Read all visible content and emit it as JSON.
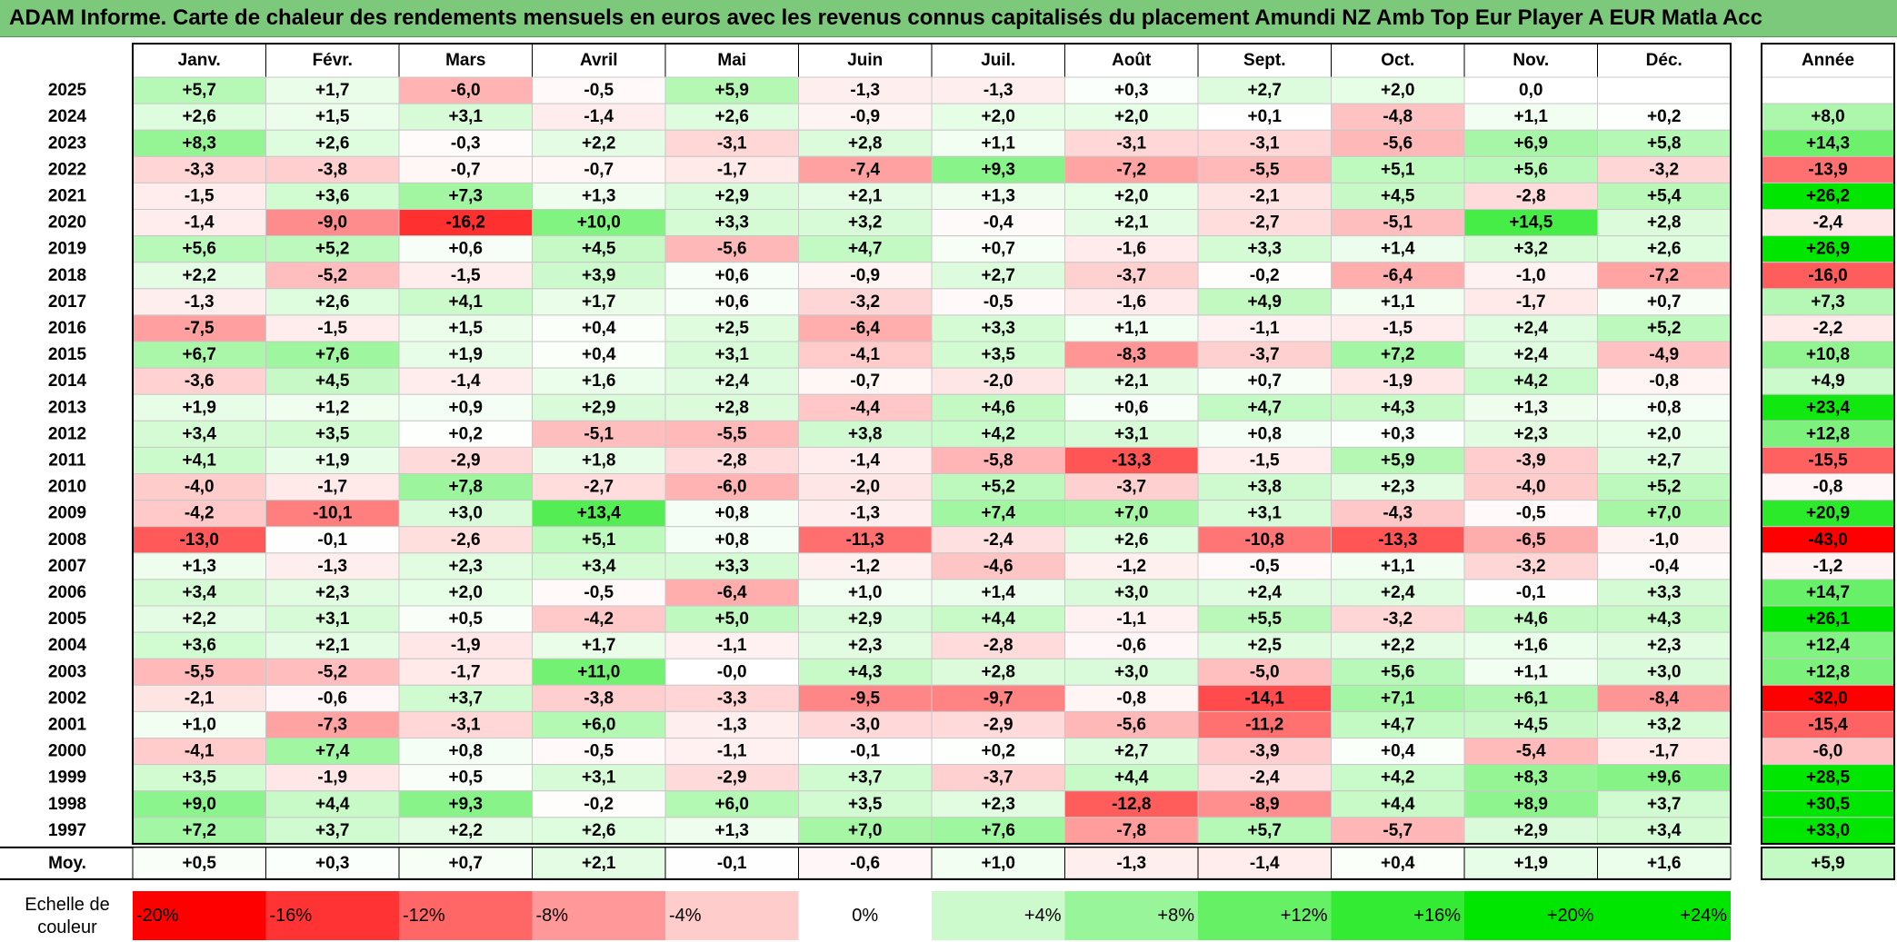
{
  "title": "ADAM Informe. Carte de chaleur des rendements mensuels en euros avec les revenus connus capitalisés du placement Amundi NZ Amb Top Eur Player A EUR Matla Acc",
  "chart_data": {
    "type": "heatmap",
    "title": "ADAM Informe. Carte de chaleur des rendements mensuels en euros avec les revenus connus capitalisés du placement Amundi NZ Amb Top Eur Player A EUR Matla Acc",
    "months": [
      "Janv.",
      "Févr.",
      "Mars",
      "Avril",
      "Mai",
      "Juin",
      "Juil.",
      "Août",
      "Sept.",
      "Oct.",
      "Nov.",
      "Déc."
    ],
    "year_header": "Année",
    "rows": [
      {
        "year": "2025",
        "values": [
          "+5,7",
          "+1,7",
          "-6,0",
          "-0,5",
          "+5,9",
          "-1,3",
          "-1,3",
          "+0,3",
          "+2,7",
          "+2,0",
          "0,0",
          ""
        ],
        "annual": ""
      },
      {
        "year": "2024",
        "values": [
          "+2,6",
          "+1,5",
          "+3,1",
          "-1,4",
          "+2,6",
          "-0,9",
          "+2,0",
          "+2,0",
          "+0,1",
          "-4,8",
          "+1,1",
          "+0,2"
        ],
        "annual": "+8,0"
      },
      {
        "year": "2023",
        "values": [
          "+8,3",
          "+2,6",
          "-0,3",
          "+2,2",
          "-3,1",
          "+2,8",
          "+1,1",
          "-3,1",
          "-3,1",
          "-5,6",
          "+6,9",
          "+5,8"
        ],
        "annual": "+14,3"
      },
      {
        "year": "2022",
        "values": [
          "-3,3",
          "-3,8",
          "-0,7",
          "-0,7",
          "-1,7",
          "-7,4",
          "+9,3",
          "-7,2",
          "-5,5",
          "+5,1",
          "+5,6",
          "-3,2"
        ],
        "annual": "-13,9"
      },
      {
        "year": "2021",
        "values": [
          "-1,5",
          "+3,6",
          "+7,3",
          "+1,3",
          "+2,9",
          "+2,1",
          "+1,3",
          "+2,0",
          "-2,1",
          "+4,5",
          "-2,8",
          "+5,4"
        ],
        "annual": "+26,2"
      },
      {
        "year": "2020",
        "values": [
          "-1,4",
          "-9,0",
          "-16,2",
          "+10,0",
          "+3,3",
          "+3,2",
          "-0,4",
          "+2,1",
          "-2,7",
          "-5,1",
          "+14,5",
          "+2,8"
        ],
        "annual": "-2,4"
      },
      {
        "year": "2019",
        "values": [
          "+5,6",
          "+5,2",
          "+0,6",
          "+4,5",
          "-5,6",
          "+4,7",
          "+0,7",
          "-1,6",
          "+3,3",
          "+1,4",
          "+3,2",
          "+2,6"
        ],
        "annual": "+26,9"
      },
      {
        "year": "2018",
        "values": [
          "+2,2",
          "-5,2",
          "-1,5",
          "+3,9",
          "+0,6",
          "-0,9",
          "+2,7",
          "-3,7",
          "-0,2",
          "-6,4",
          "-1,0",
          "-7,2"
        ],
        "annual": "-16,0"
      },
      {
        "year": "2017",
        "values": [
          "-1,3",
          "+2,6",
          "+4,1",
          "+1,7",
          "+0,6",
          "-3,2",
          "-0,5",
          "-1,6",
          "+4,9",
          "+1,1",
          "-1,7",
          "+0,7"
        ],
        "annual": "+7,3"
      },
      {
        "year": "2016",
        "values": [
          "-7,5",
          "-1,5",
          "+1,5",
          "+0,4",
          "+2,5",
          "-6,4",
          "+3,3",
          "+1,1",
          "-1,1",
          "-1,5",
          "+2,4",
          "+5,2"
        ],
        "annual": "-2,2"
      },
      {
        "year": "2015",
        "values": [
          "+6,7",
          "+7,6",
          "+1,9",
          "+0,4",
          "+3,1",
          "-4,1",
          "+3,5",
          "-8,3",
          "-3,7",
          "+7,2",
          "+2,4",
          "-4,9"
        ],
        "annual": "+10,8"
      },
      {
        "year": "2014",
        "values": [
          "-3,6",
          "+4,5",
          "-1,4",
          "+1,6",
          "+2,4",
          "-0,7",
          "-2,0",
          "+2,1",
          "+0,7",
          "-1,9",
          "+4,2",
          "-0,8"
        ],
        "annual": "+4,9"
      },
      {
        "year": "2013",
        "values": [
          "+1,9",
          "+1,2",
          "+0,9",
          "+2,9",
          "+2,8",
          "-4,4",
          "+4,6",
          "+0,6",
          "+4,7",
          "+4,3",
          "+1,3",
          "+0,8"
        ],
        "annual": "+23,4"
      },
      {
        "year": "2012",
        "values": [
          "+3,4",
          "+3,5",
          "+0,2",
          "-5,1",
          "-5,5",
          "+3,8",
          "+4,2",
          "+3,1",
          "+0,8",
          "+0,3",
          "+2,3",
          "+2,0"
        ],
        "annual": "+12,8"
      },
      {
        "year": "2011",
        "values": [
          "+4,1",
          "+1,9",
          "-2,9",
          "+1,8",
          "-2,8",
          "-1,4",
          "-5,8",
          "-13,3",
          "-1,5",
          "+5,9",
          "-3,9",
          "+2,7"
        ],
        "annual": "-15,5"
      },
      {
        "year": "2010",
        "values": [
          "-4,0",
          "-1,7",
          "+7,8",
          "-2,7",
          "-6,0",
          "-2,0",
          "+5,2",
          "-3,7",
          "+3,8",
          "+2,3",
          "-4,0",
          "+5,2"
        ],
        "annual": "-0,8"
      },
      {
        "year": "2009",
        "values": [
          "-4,2",
          "-10,1",
          "+3,0",
          "+13,4",
          "+0,8",
          "-1,3",
          "+7,4",
          "+7,0",
          "+3,1",
          "-4,3",
          "-0,5",
          "+7,0"
        ],
        "annual": "+20,9"
      },
      {
        "year": "2008",
        "values": [
          "-13,0",
          "-0,1",
          "-2,6",
          "+5,1",
          "+0,8",
          "-11,3",
          "-2,4",
          "+2,6",
          "-10,8",
          "-13,3",
          "-6,5",
          "-1,0"
        ],
        "annual": "-43,0"
      },
      {
        "year": "2007",
        "values": [
          "+1,3",
          "-1,3",
          "+2,3",
          "+3,4",
          "+3,3",
          "-1,2",
          "-4,6",
          "-1,2",
          "-0,5",
          "+1,1",
          "-3,2",
          "-0,4"
        ],
        "annual": "-1,2"
      },
      {
        "year": "2006",
        "values": [
          "+3,4",
          "+2,3",
          "+2,0",
          "-0,5",
          "-6,4",
          "+1,0",
          "+1,4",
          "+3,0",
          "+2,4",
          "+2,4",
          "-0,1",
          "+3,3"
        ],
        "annual": "+14,7"
      },
      {
        "year": "2005",
        "values": [
          "+2,2",
          "+3,1",
          "+0,5",
          "-4,2",
          "+5,0",
          "+2,9",
          "+4,4",
          "-1,1",
          "+5,5",
          "-3,2",
          "+4,6",
          "+4,3"
        ],
        "annual": "+26,1"
      },
      {
        "year": "2004",
        "values": [
          "+3,6",
          "+2,1",
          "-1,9",
          "+1,7",
          "-1,1",
          "+2,3",
          "-2,8",
          "-0,6",
          "+2,5",
          "+2,2",
          "+1,6",
          "+2,3"
        ],
        "annual": "+12,4"
      },
      {
        "year": "2003",
        "values": [
          "-5,5",
          "-5,2",
          "-1,7",
          "+11,0",
          "-0,0",
          "+4,3",
          "+2,8",
          "+3,0",
          "-5,0",
          "+5,6",
          "+1,1",
          "+3,0"
        ],
        "annual": "+12,8"
      },
      {
        "year": "2002",
        "values": [
          "-2,1",
          "-0,6",
          "+3,7",
          "-3,8",
          "-3,3",
          "-9,5",
          "-9,7",
          "-0,8",
          "-14,1",
          "+7,1",
          "+6,1",
          "-8,4"
        ],
        "annual": "-32,0"
      },
      {
        "year": "2001",
        "values": [
          "+1,0",
          "-7,3",
          "-3,1",
          "+6,0",
          "-1,3",
          "-3,0",
          "-2,9",
          "-5,6",
          "-11,2",
          "+4,7",
          "+4,5",
          "+3,2"
        ],
        "annual": "-15,4"
      },
      {
        "year": "2000",
        "values": [
          "-4,1",
          "+7,4",
          "+0,8",
          "-0,5",
          "-1,1",
          "-0,1",
          "+0,2",
          "+2,7",
          "-3,9",
          "+0,4",
          "-5,4",
          "-1,7"
        ],
        "annual": "-6,0"
      },
      {
        "year": "1999",
        "values": [
          "+3,5",
          "-1,9",
          "+0,5",
          "+3,1",
          "-2,9",
          "+3,7",
          "-3,7",
          "+4,4",
          "-2,4",
          "+4,2",
          "+8,3",
          "+9,6"
        ],
        "annual": "+28,5"
      },
      {
        "year": "1998",
        "values": [
          "+9,0",
          "+4,4",
          "+9,3",
          "-0,2",
          "+6,0",
          "+3,5",
          "+2,3",
          "-12,8",
          "-8,9",
          "+4,4",
          "+8,9",
          "+3,7"
        ],
        "annual": "+30,5"
      },
      {
        "year": "1997",
        "values": [
          "+7,2",
          "+3,7",
          "+2,2",
          "+2,6",
          "+1,3",
          "+7,0",
          "+7,6",
          "-7,8",
          "+5,7",
          "-5,7",
          "+2,9",
          "+3,4"
        ],
        "annual": "+33,0"
      }
    ],
    "average": {
      "label": "Moy.",
      "values": [
        "+0,5",
        "+0,3",
        "+0,7",
        "+2,1",
        "-0,1",
        "-0,6",
        "+1,0",
        "-1,3",
        "-1,4",
        "+0,4",
        "+1,9",
        "+1,6"
      ],
      "annual": "+5,9"
    },
    "color_scale": {
      "label_line1": "Echelle de",
      "label_line2": "couleur",
      "stops": [
        "-20%",
        "-16%",
        "-12%",
        "-8%",
        "-4%",
        "0%",
        "+4%",
        "+8%",
        "+12%",
        "+16%",
        "+20%",
        "+24%"
      ],
      "stop_values": [
        -20,
        -16,
        -12,
        -8,
        -4,
        0,
        4,
        8,
        12,
        16,
        20,
        24
      ],
      "negative_color": "#ff0000",
      "neutral_color": "#ffffff",
      "positive_color": "#00e600"
    }
  }
}
